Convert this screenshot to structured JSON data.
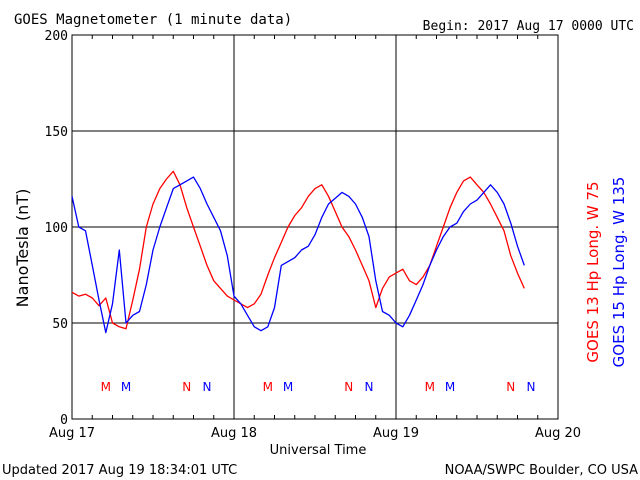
{
  "header": {
    "title": "GOES Magnetometer (1 minute data)",
    "begin": "Begin:  2017 Aug 17 0000 UTC"
  },
  "footer": {
    "updated": "Updated 2017 Aug 19 18:34:01 UTC",
    "credit": "NOAA/SWPC Boulder, CO USA"
  },
  "chart_data": {
    "type": "line",
    "title": "GOES Magnetometer (1 minute data)",
    "xlabel": "Universal Time",
    "ylabel": "NanoTesla (nT)",
    "xlim": [
      0,
      72
    ],
    "x_units": "hours since 2017 Aug 17 0000 UTC",
    "ylim": [
      0,
      200
    ],
    "yticks": [
      0,
      50,
      100,
      150,
      200
    ],
    "xtick_labels": [
      "Aug 17",
      "Aug 18",
      "Aug 19",
      "Aug 20"
    ],
    "grid": true,
    "series": [
      {
        "name": "GOES 13 Hp  Long. W 75",
        "color": "#ff0000",
        "label_color": "#ff0000",
        "x": [
          0,
          1,
          2,
          3,
          4,
          5,
          6,
          7,
          8,
          9,
          10,
          11,
          12,
          13,
          14,
          15,
          16,
          17,
          18,
          19,
          20,
          21,
          22,
          23,
          24,
          25,
          26,
          27,
          28,
          29,
          30,
          31,
          32,
          33,
          34,
          35,
          36,
          37,
          38,
          39,
          40,
          41,
          42,
          43,
          44,
          45,
          46,
          47,
          48,
          49,
          50,
          51,
          52,
          53,
          54,
          55,
          56,
          57,
          58,
          59,
          60,
          61,
          62,
          63,
          64,
          65,
          66,
          67
        ],
        "y": [
          66,
          64,
          65,
          63,
          59,
          63,
          50,
          48,
          47,
          62,
          78,
          100,
          112,
          120,
          125,
          129,
          122,
          110,
          100,
          90,
          80,
          72,
          68,
          64,
          62,
          60,
          58,
          60,
          65,
          75,
          84,
          92,
          100,
          106,
          110,
          116,
          120,
          122,
          116,
          108,
          100,
          95,
          88,
          80,
          72,
          58,
          68,
          74,
          76,
          78,
          72,
          70,
          74,
          80,
          90,
          100,
          110,
          118,
          124,
          126,
          122,
          118,
          112,
          105,
          98,
          85,
          76,
          68
        ]
      },
      {
        "name": "GOES 15 Hp  Long. W 135",
        "color": "#0000ff",
        "label_color": "#0000ff",
        "x": [
          0,
          1,
          2,
          3,
          4,
          5,
          6,
          7,
          8,
          9,
          10,
          11,
          12,
          13,
          14,
          15,
          16,
          17,
          18,
          19,
          20,
          21,
          22,
          23,
          24,
          25,
          26,
          27,
          28,
          29,
          30,
          31,
          32,
          33,
          34,
          35,
          36,
          37,
          38,
          39,
          40,
          41,
          42,
          43,
          44,
          45,
          46,
          47,
          48,
          49,
          50,
          51,
          52,
          53,
          54,
          55,
          56,
          57,
          58,
          59,
          60,
          61,
          62,
          63,
          64,
          65,
          66,
          67
        ],
        "y": [
          116,
          100,
          98,
          80,
          62,
          45,
          60,
          88,
          50,
          54,
          56,
          70,
          88,
          100,
          110,
          120,
          122,
          124,
          126,
          120,
          112,
          105,
          98,
          85,
          64,
          60,
          54,
          48,
          46,
          48,
          58,
          80,
          82,
          84,
          88,
          90,
          96,
          105,
          112,
          115,
          118,
          116,
          112,
          105,
          95,
          72,
          56,
          54,
          50,
          48,
          54,
          62,
          70,
          80,
          88,
          95,
          100,
          102,
          108,
          112,
          114,
          118,
          122,
          118,
          112,
          102,
          90,
          80
        ]
      }
    ],
    "markers": [
      {
        "label": "M",
        "hour": 5,
        "color": "#ff0000"
      },
      {
        "label": "M",
        "hour": 8,
        "color": "#0000ff"
      },
      {
        "label": "N",
        "hour": 17,
        "color": "#ff0000"
      },
      {
        "label": "N",
        "hour": 20,
        "color": "#0000ff"
      },
      {
        "label": "M",
        "hour": 29,
        "color": "#ff0000"
      },
      {
        "label": "M",
        "hour": 32,
        "color": "#0000ff"
      },
      {
        "label": "N",
        "hour": 41,
        "color": "#ff0000"
      },
      {
        "label": "N",
        "hour": 44,
        "color": "#0000ff"
      },
      {
        "label": "M",
        "hour": 53,
        "color": "#ff0000"
      },
      {
        "label": "M",
        "hour": 56,
        "color": "#0000ff"
      },
      {
        "label": "N",
        "hour": 65,
        "color": "#ff0000"
      },
      {
        "label": "N",
        "hour": 68,
        "color": "#0000ff"
      }
    ]
  }
}
